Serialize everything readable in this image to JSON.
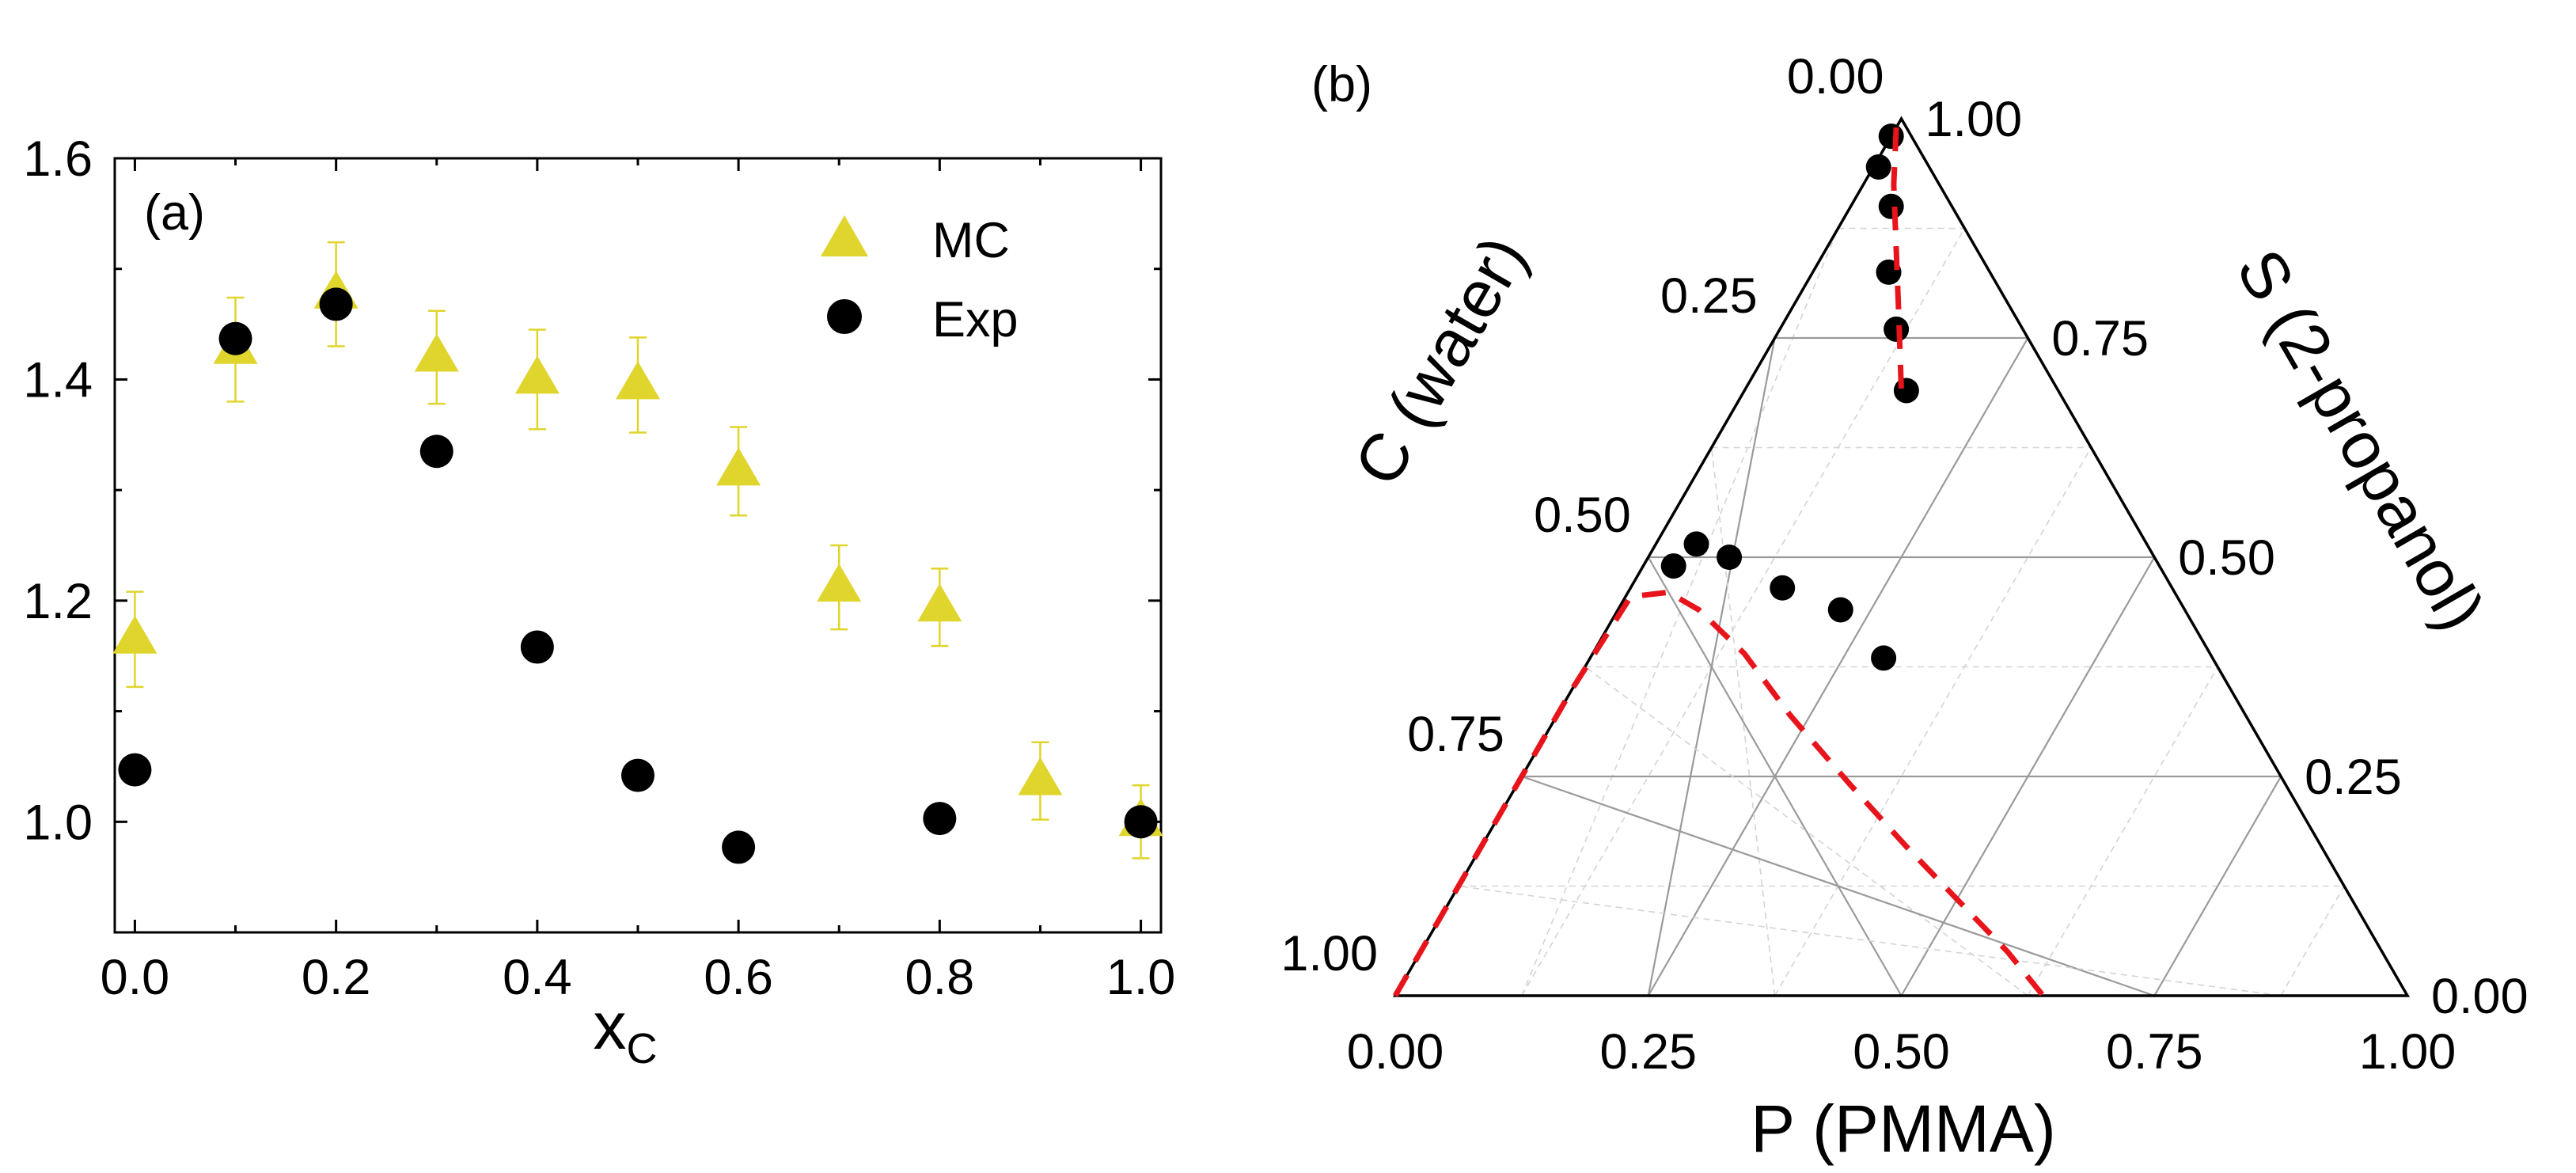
{
  "chart_data": [
    {
      "panel": "(a)",
      "type": "scatter",
      "xlabel_main": "x",
      "xlabel_sub": "C",
      "ylabel": "",
      "xlim": [
        -0.02,
        1.02
      ],
      "ylim": [
        0.9,
        1.6
      ],
      "xticks": [
        0.0,
        0.2,
        0.4,
        0.6,
        0.8,
        1.0
      ],
      "xtick_labels": [
        "0.0",
        "0.2",
        "0.4",
        "0.6",
        "0.8",
        "1.0"
      ],
      "yticks": [
        1.0,
        1.2,
        1.4,
        1.6
      ],
      "ytick_labels": [
        "1.0",
        "1.2",
        "1.4",
        "1.6"
      ],
      "grid": false,
      "legend_position": "top-right",
      "series": [
        {
          "name": "MC",
          "marker": "triangle",
          "color": "#e0d52c",
          "x": [
            0.0,
            0.1,
            0.2,
            0.3,
            0.4,
            0.5,
            0.6,
            0.7,
            0.8,
            0.9,
            1.0
          ],
          "y": [
            1.165,
            1.427,
            1.477,
            1.42,
            1.4,
            1.395,
            1.317,
            1.212,
            1.194,
            1.037,
            1.0
          ],
          "yerr": [
            0.043,
            0.047,
            0.047,
            0.042,
            0.045,
            0.043,
            0.04,
            0.038,
            0.035,
            0.035,
            0.033
          ]
        },
        {
          "name": "Exp",
          "marker": "circle",
          "color": "#000000",
          "x": [
            0.0,
            0.1,
            0.2,
            0.3,
            0.4,
            0.5,
            0.6,
            0.8,
            1.0
          ],
          "y": [
            1.047,
            1.437,
            1.468,
            1.335,
            1.158,
            1.042,
            0.977,
            1.003,
            1.0
          ]
        }
      ]
    },
    {
      "panel": "(b)",
      "type": "scatter",
      "subtype": "ternary",
      "axis_bottom_title": "P (PMMA)",
      "axis_left_title": "C (water)",
      "axis_right_title": "S (2-propanol)",
      "tick_values": [
        0.0,
        0.25,
        0.5,
        0.75,
        1.0
      ],
      "bottom_tick_labels": [
        "0.00",
        "0.25",
        "0.50",
        "0.75",
        "1.00"
      ],
      "left_tick_labels": [
        "1.00",
        "0.75",
        "0.50",
        "0.25",
        "0.00"
      ],
      "right_tick_labels": [
        "0.00",
        "0.25",
        "0.50",
        "0.75",
        "1.00"
      ],
      "grid": true,
      "points_color": "#000000",
      "curve_color": "#e8141b",
      "points": [
        {
          "P": 0.0,
          "S": 0.98
        },
        {
          "P": 0.005,
          "S": 0.945
        },
        {
          "P": 0.04,
          "S": 0.9
        },
        {
          "P": 0.075,
          "S": 0.825
        },
        {
          "P": 0.115,
          "S": 0.76
        },
        {
          "P": 0.16,
          "S": 0.69
        },
        {
          "P": 0.03,
          "S": 0.49
        },
        {
          "P": 0.04,
          "S": 0.515
        },
        {
          "P": 0.08,
          "S": 0.5
        },
        {
          "P": 0.15,
          "S": 0.465
        },
        {
          "P": 0.22,
          "S": 0.44
        },
        {
          "P": 0.29,
          "S": 0.385
        }
      ],
      "binodal_curve": [
        {
          "P": 0.0,
          "S": 0.99
        },
        {
          "P": 0.03,
          "S": 0.925
        },
        {
          "P": 0.07,
          "S": 0.85
        },
        {
          "P": 0.11,
          "S": 0.775
        },
        {
          "P": 0.155,
          "S": 0.69
        },
        {
          "P": 0.0,
          "S": 0.0
        },
        {
          "P": 0.0,
          "S": 0.2
        },
        {
          "P": 0.0,
          "S": 0.35
        },
        {
          "P": 0.005,
          "S": 0.455
        },
        {
          "P": 0.04,
          "S": 0.46
        },
        {
          "P": 0.08,
          "S": 0.44
        },
        {
          "P": 0.15,
          "S": 0.39
        },
        {
          "P": 0.23,
          "S": 0.32
        },
        {
          "P": 0.33,
          "S": 0.24
        },
        {
          "P": 0.42,
          "S": 0.17
        },
        {
          "P": 0.5,
          "S": 0.11
        },
        {
          "P": 0.58,
          "S": 0.05
        },
        {
          "P": 0.64,
          "S": 0.0
        }
      ]
    }
  ]
}
